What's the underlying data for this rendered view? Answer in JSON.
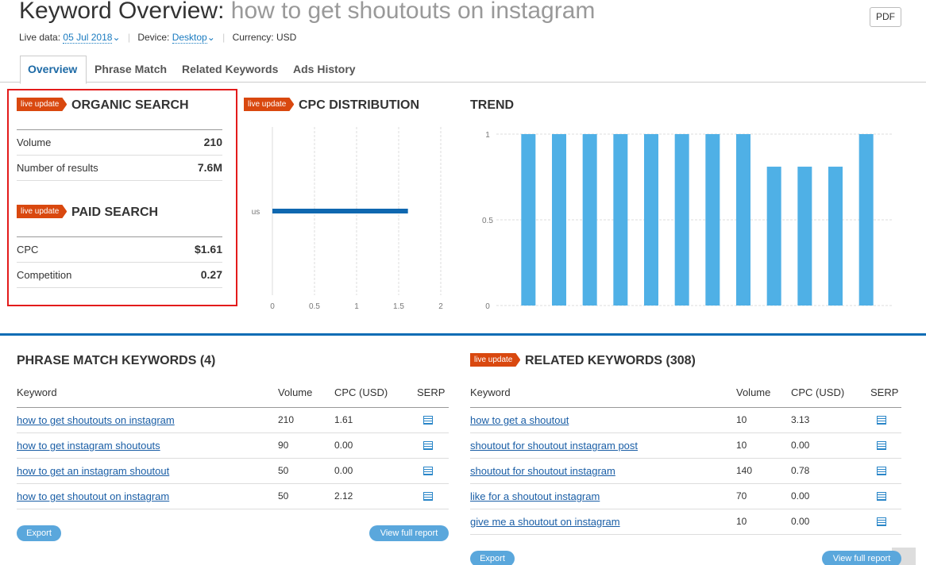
{
  "header": {
    "title": "Keyword Overview:",
    "keyword": "how to get shoutouts on instagram",
    "pdf": "PDF",
    "live_data_label": "Live data:",
    "date": "05 Jul 2018",
    "device_label": "Device:",
    "device": "Desktop",
    "currency": "Currency: USD"
  },
  "tabs": [
    "Overview",
    "Phrase Match",
    "Related Keywords",
    "Ads History"
  ],
  "organic": {
    "badge": "live update",
    "title": "ORGANIC SEARCH",
    "rows": [
      [
        "Volume",
        "210"
      ],
      [
        "Number of results",
        "7.6M"
      ]
    ]
  },
  "paid": {
    "badge": "live update",
    "title": "PAID SEARCH",
    "rows": [
      [
        "CPC",
        "$1.61"
      ],
      [
        "Competition",
        "0.27"
      ]
    ]
  },
  "chart_data": [
    {
      "type": "hbar",
      "badge": "live update",
      "title": "CPC DISTRIBUTION",
      "categories": [
        "us"
      ],
      "values": [
        1.61
      ],
      "color": "#0f68b0",
      "xlim": [
        0,
        2
      ],
      "xticks": [
        0,
        0.5,
        1,
        1.5,
        2
      ],
      "grid": true
    },
    {
      "type": "bar",
      "title": "TREND",
      "values": [
        1,
        1,
        1,
        1,
        1,
        1,
        1,
        1,
        0.81,
        0.81,
        0.81,
        1
      ],
      "color": "#4fb0e6",
      "ylim": [
        0,
        1
      ],
      "yticks": [
        0,
        0.5,
        1
      ],
      "grid": true
    }
  ],
  "phrase": {
    "title": "PHRASE MATCH KEYWORDS (4)",
    "columns": [
      "Keyword",
      "Volume",
      "CPC (USD)",
      "SERP"
    ],
    "rows": [
      [
        "how to get shoutouts on instagram",
        "210",
        "1.61"
      ],
      [
        "how to get instagram shoutouts",
        "90",
        "0.00"
      ],
      [
        "how to get an instagram shoutout",
        "50",
        "0.00"
      ],
      [
        "how to get shoutout on instagram",
        "50",
        "2.12"
      ]
    ],
    "export": "Export",
    "view": "View full report"
  },
  "related": {
    "badge": "live update",
    "title": "RELATED KEYWORDS (308)",
    "columns": [
      "Keyword",
      "Volume",
      "CPC (USD)",
      "SERP"
    ],
    "rows": [
      [
        "how to get a shoutout",
        "10",
        "3.13"
      ],
      [
        "shoutout for shoutout instagram post",
        "10",
        "0.00"
      ],
      [
        "shoutout for shoutout instagram",
        "140",
        "0.78"
      ],
      [
        "like for a shoutout instagram",
        "70",
        "0.00"
      ],
      [
        "give me a shoutout on instagram",
        "10",
        "0.00"
      ]
    ],
    "export": "Export",
    "view": "View full report"
  }
}
